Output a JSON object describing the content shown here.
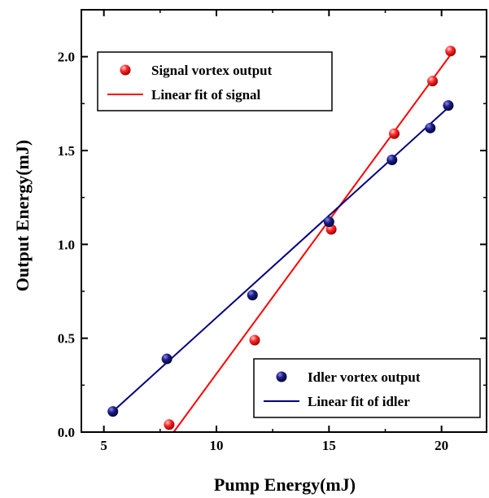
{
  "chart_data": {
    "type": "scatter",
    "xlabel": "Pump Energy(mJ)",
    "ylabel": "Output Energy(mJ)",
    "xlim": [
      4,
      22
    ],
    "ylim": [
      0,
      2.25
    ],
    "x_ticks": [
      5,
      10,
      15,
      20
    ],
    "x_tick_labels": [
      "5",
      "10",
      "15",
      "20"
    ],
    "y_ticks": [
      0,
      0.5,
      1.0,
      1.5,
      2.0
    ],
    "y_tick_labels": [
      "0.0",
      "0.5",
      "1.0",
      "1.5",
      "2.0"
    ],
    "grid": false,
    "series": [
      {
        "name": "Signal vortex output",
        "kind": "points",
        "color": "#ff2020",
        "x": [
          7.9,
          11.7,
          15.1,
          17.9,
          19.6,
          20.4
        ],
        "y": [
          0.04,
          0.49,
          1.08,
          1.59,
          1.87,
          2.03
        ]
      },
      {
        "name": "Linear fit of signal",
        "kind": "line",
        "color": "#ff0000",
        "x": [
          8.1,
          20.4
        ],
        "y": [
          0.0,
          2.01
        ]
      },
      {
        "name": "Idler vortex output",
        "kind": "points",
        "color": "#1a1a80",
        "x": [
          5.4,
          7.8,
          11.6,
          15.0,
          17.8,
          19.5,
          20.3
        ],
        "y": [
          0.11,
          0.39,
          0.73,
          1.12,
          1.45,
          1.62,
          1.74
        ]
      },
      {
        "name": "Linear fit of idler",
        "kind": "line",
        "color": "#000080",
        "x": [
          5.4,
          20.4
        ],
        "y": [
          0.11,
          1.74
        ]
      }
    ],
    "legends": [
      {
        "placement": "top-left",
        "entries": [
          0,
          1
        ]
      },
      {
        "placement": "bottom-right",
        "entries": [
          2,
          3
        ]
      }
    ]
  }
}
